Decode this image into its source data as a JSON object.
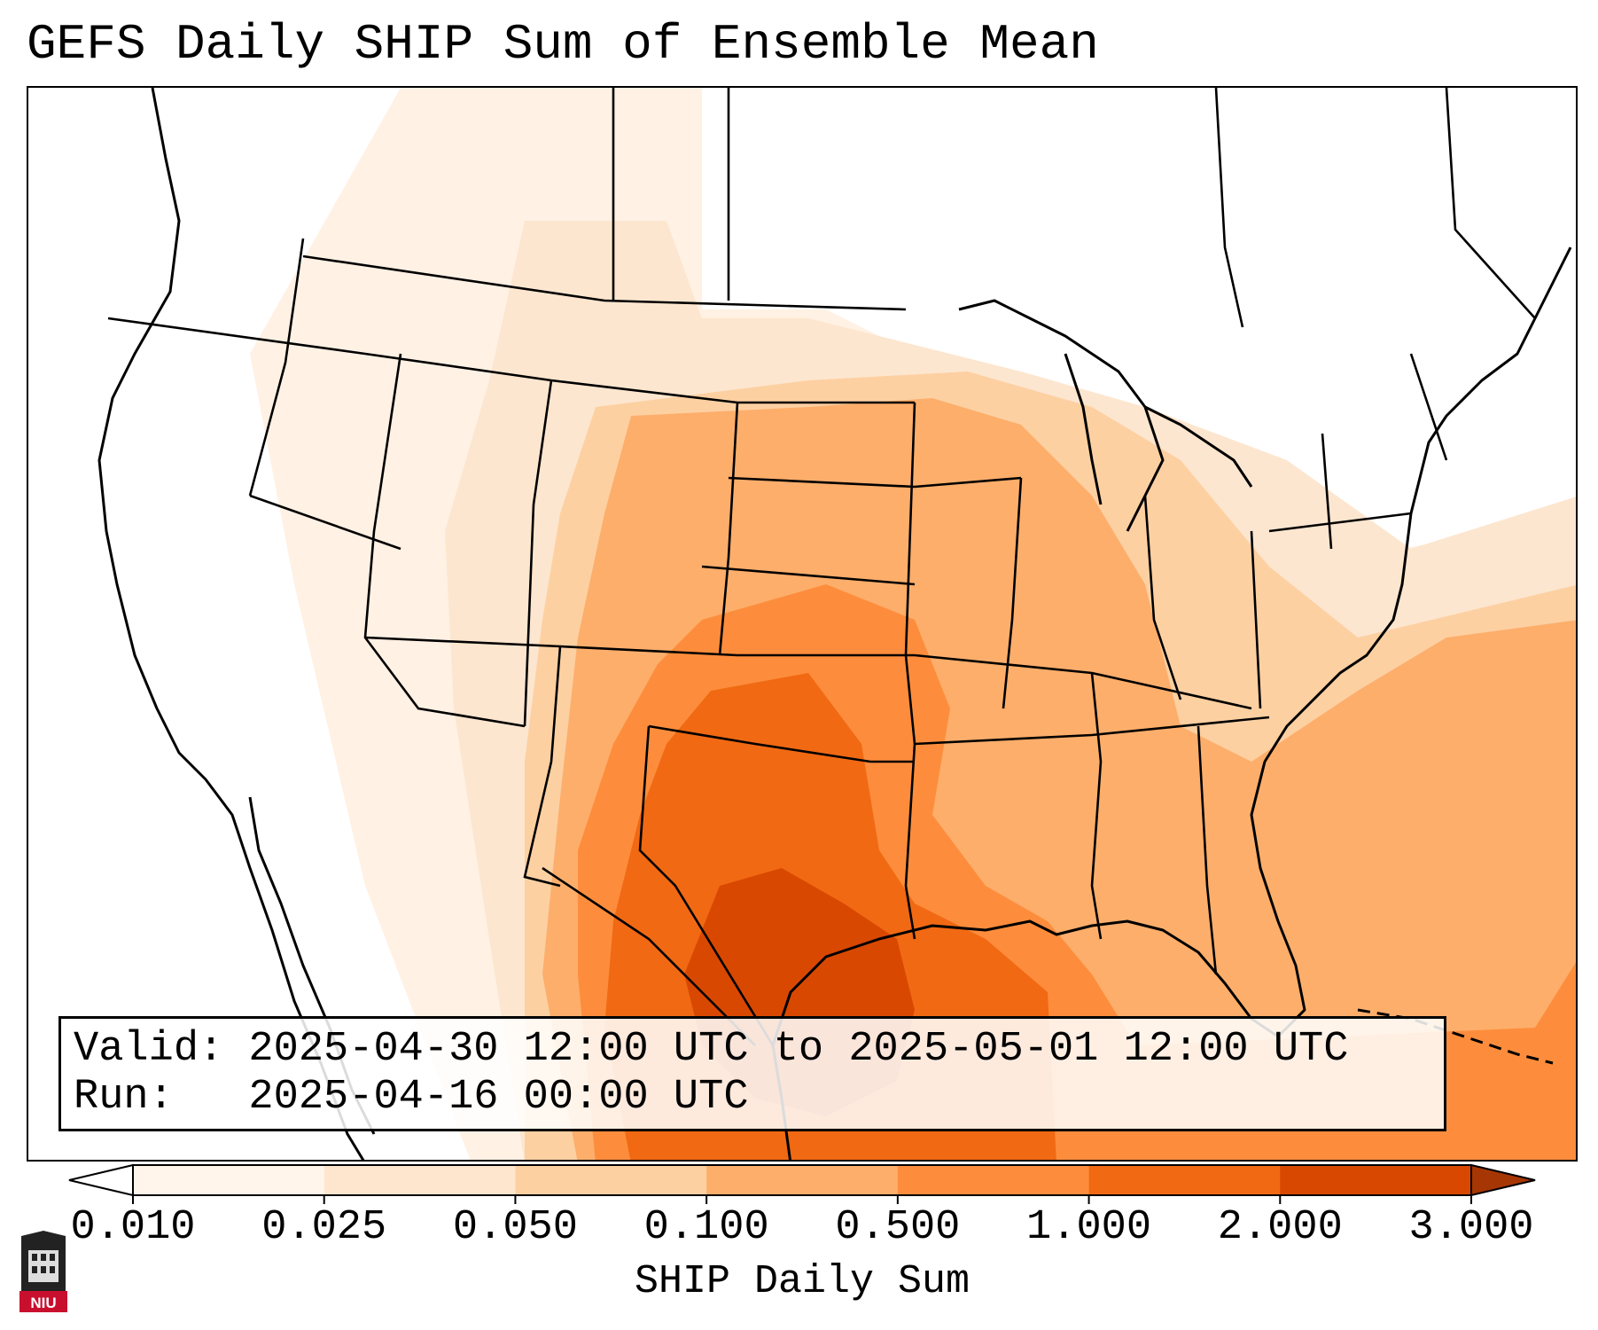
{
  "title": "GEFS Daily SHIP Sum of Ensemble Mean",
  "info": {
    "valid": "Valid: 2025-04-30 12:00 UTC to 2025-05-01 12:00 UTC",
    "run": "Run:   2025-04-16 00:00 UTC"
  },
  "colorbar": {
    "label": "SHIP Daily Sum",
    "ticks": [
      "0.010",
      "0.025",
      "0.050",
      "0.100",
      "0.500",
      "1.000",
      "2.000",
      "3.000"
    ],
    "colors": [
      "#fff5eb",
      "#fee6ce",
      "#fdd0a2",
      "#fdae6b",
      "#fd8d3c",
      "#f16913",
      "#d94801",
      "#a63603"
    ]
  },
  "logo": {
    "text": "NIU"
  }
}
